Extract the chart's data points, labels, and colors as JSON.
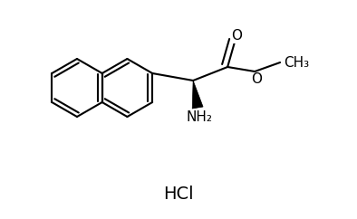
{
  "bg_color": "#ffffff",
  "line_color": "#000000",
  "line_width": 1.5,
  "font_size": 11,
  "hcl_font_size": 14,
  "hcl_text": "HCl",
  "o_label": "O",
  "o2_label": "O",
  "nh2_label": "NH₂",
  "ch3_label": "CH₃"
}
